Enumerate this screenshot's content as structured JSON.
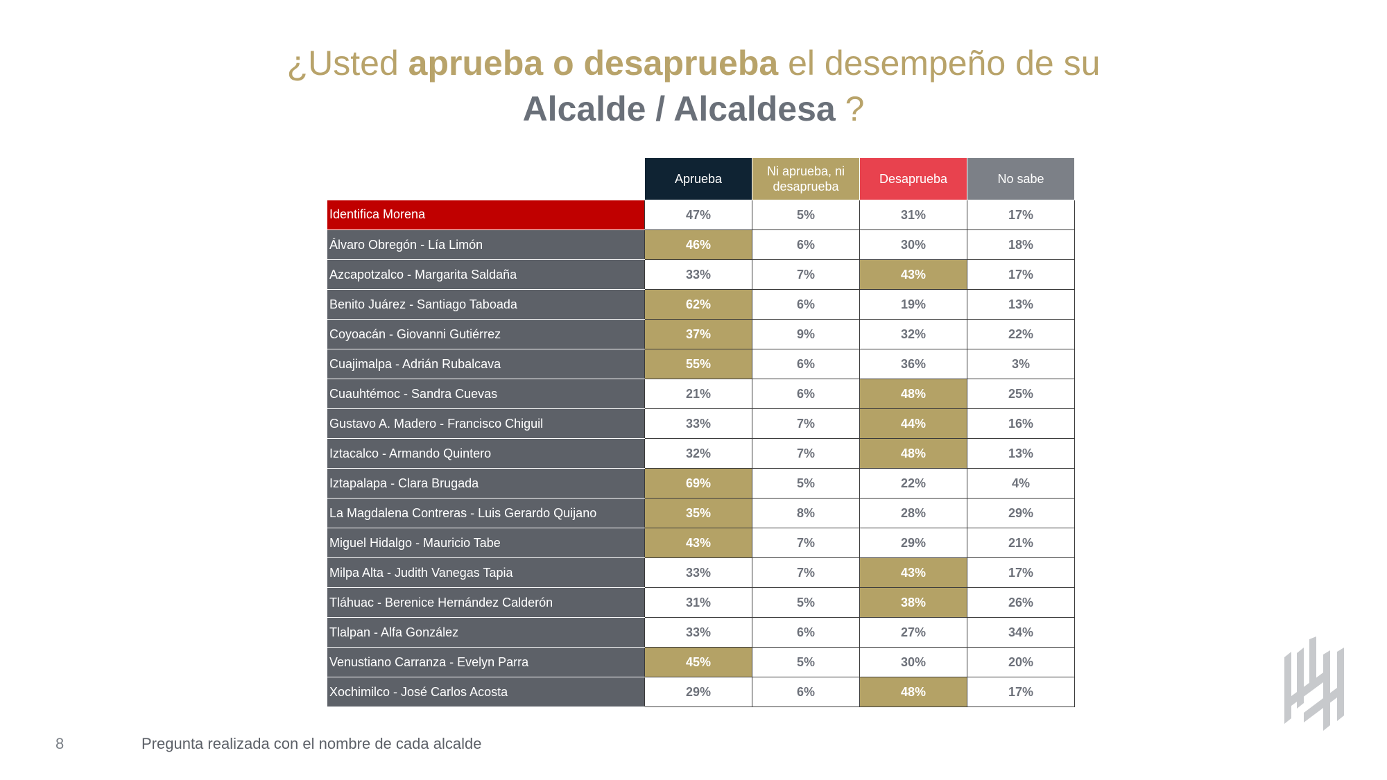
{
  "title": {
    "q_open": "¿Usted ",
    "q_bold": "aprueba o desaprueba",
    "q_rest": " el desempeño de su",
    "subject": "Alcalde / Alcaldesa",
    "q_close": " ?"
  },
  "colors": {
    "gold": "#b4a266",
    "navy": "#0f2333",
    "red_header": "#e8424e",
    "gray_header": "#7c8087",
    "row_label_bg": "#5d6168",
    "morena_red": "#c00000"
  },
  "chart_data": {
    "type": "table",
    "columns": [
      "Aprueba",
      "Ni aprueba, ni desaprueba",
      "Desaprueba",
      "No sabe"
    ],
    "rows": [
      {
        "label": "Identifica Morena",
        "values": [
          "47%",
          "5%",
          "31%",
          "17%"
        ],
        "highlight": null,
        "row_highlight": true
      },
      {
        "label": "Álvaro Obregón - Lía Limón",
        "values": [
          "46%",
          "6%",
          "30%",
          "18%"
        ],
        "highlight": 0
      },
      {
        "label": "Azcapotzalco - Margarita Saldaña",
        "values": [
          "33%",
          "7%",
          "43%",
          "17%"
        ],
        "highlight": 2
      },
      {
        "label": "Benito Juárez - Santiago Taboada",
        "values": [
          "62%",
          "6%",
          "19%",
          "13%"
        ],
        "highlight": 0
      },
      {
        "label": "Coyoacán - Giovanni Gutiérrez",
        "values": [
          "37%",
          "9%",
          "32%",
          "22%"
        ],
        "highlight": 0
      },
      {
        "label": "Cuajimalpa - Adrián Rubalcava",
        "values": [
          "55%",
          "6%",
          "36%",
          "3%"
        ],
        "highlight": 0
      },
      {
        "label": "Cuauhtémoc - Sandra Cuevas",
        "values": [
          "21%",
          "6%",
          "48%",
          "25%"
        ],
        "highlight": 2
      },
      {
        "label": "Gustavo A. Madero - Francisco Chiguil",
        "values": [
          "33%",
          "7%",
          "44%",
          "16%"
        ],
        "highlight": 2
      },
      {
        "label": "Iztacalco - Armando Quintero",
        "values": [
          "32%",
          "7%",
          "48%",
          "13%"
        ],
        "highlight": 2
      },
      {
        "label": "Iztapalapa - Clara Brugada",
        "values": [
          "69%",
          "5%",
          "22%",
          "4%"
        ],
        "highlight": 0
      },
      {
        "label": "La Magdalena Contreras - Luis Gerardo Quijano",
        "values": [
          "35%",
          "8%",
          "28%",
          "29%"
        ],
        "highlight": 0
      },
      {
        "label": "Miguel Hidalgo - Mauricio Tabe",
        "values": [
          "43%",
          "7%",
          "29%",
          "21%"
        ],
        "highlight": 0
      },
      {
        "label": "Milpa Alta - Judith Vanegas Tapia",
        "values": [
          "33%",
          "7%",
          "43%",
          "17%"
        ],
        "highlight": 2
      },
      {
        "label": "Tláhuac - Berenice Hernández Calderón",
        "values": [
          "31%",
          "5%",
          "38%",
          "26%"
        ],
        "highlight": 2
      },
      {
        "label": "Tlalpan - Alfa González",
        "values": [
          "33%",
          "6%",
          "27%",
          "34%"
        ],
        "highlight": null
      },
      {
        "label": "Venustiano Carranza - Evelyn Parra",
        "values": [
          "45%",
          "5%",
          "30%",
          "20%"
        ],
        "highlight": 0
      },
      {
        "label": "Xochimilco - José Carlos Acosta",
        "values": [
          "29%",
          "6%",
          "48%",
          "17%"
        ],
        "highlight": 2
      }
    ]
  },
  "footer": {
    "page_number": "8",
    "note": "Pregunta realizada con el nombre de cada alcalde"
  },
  "logo": {
    "icon": "brand-logo-icon"
  }
}
